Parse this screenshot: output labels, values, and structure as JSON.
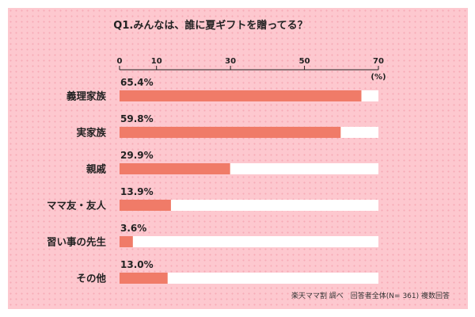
{
  "colors": {
    "background": "#fdc8cf",
    "bar_fill": "#f07b68",
    "bar_track": "#ffffff",
    "text": "#222222"
  },
  "chart_data": {
    "type": "bar",
    "orientation": "horizontal",
    "title": "Q1.みんなは、誰に夏ギフトを贈ってる？",
    "x_ticks": [
      "0",
      "10",
      "30",
      "50",
      "70"
    ],
    "x_tick_values": [
      0,
      10,
      30,
      50,
      70
    ],
    "x_unit": "(%)",
    "xlim": [
      0,
      70
    ],
    "categories": [
      "義理家族",
      "実家族",
      "親戚",
      "ママ友・友人",
      "習い事の先生",
      "その他"
    ],
    "values": [
      65.4,
      59.8,
      29.9,
      13.9,
      3.6,
      13.0
    ],
    "data_labels": [
      "65.4%",
      "59.8%",
      "29.9%",
      "13.9%",
      "3.6%",
      "13.0%"
    ],
    "grid": false,
    "legend": "none",
    "source": "楽天ママ割 調べ　回答者全体(N= 361) 複数回答"
  }
}
